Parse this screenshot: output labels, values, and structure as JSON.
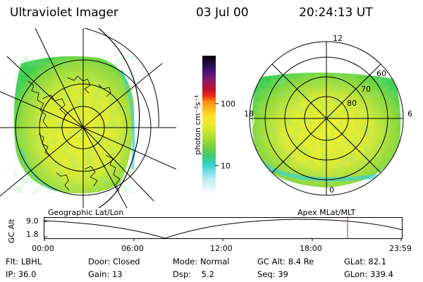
{
  "header": {
    "title": "Ultraviolet Imager",
    "date": "03 Jul 00",
    "time": "20:24:13 UT"
  },
  "left_panel": {
    "label": "Geographic Lat/Lon"
  },
  "right_panel": {
    "label": "Apex MLat/MLT",
    "lat_labels": [
      "60",
      "70",
      "80"
    ],
    "mlt_labels": {
      "top": "12",
      "left": "18",
      "right": "6",
      "bottom": "0"
    }
  },
  "colorbar": {
    "unit_label": "photon cm⁻²s⁻¹",
    "ticks": [
      "100",
      "10"
    ]
  },
  "altitude_plot": {
    "ylabel": "GC Alt",
    "yticks": [
      "9.0",
      "1.8"
    ],
    "xticks": [
      "00:00",
      "06:00",
      "12:00",
      "18:00",
      "23:59"
    ],
    "marker_time": "20:24"
  },
  "footer": {
    "flt": "Flt: LBHL",
    "door": "Door: Closed",
    "mode": "Mode: Normal",
    "gc_alt": "GC Alt: 8.4 Re",
    "glat": "GLat: 82.1",
    "ip": "IP: 36.0",
    "gain": "Gain: 13",
    "dsp": "Dsp:    5.2",
    "seq": "Seq: 39",
    "glon": "GLon: 339.4"
  },
  "colors": {
    "aurora_main": "#c8e63a",
    "aurora_green": "#3fce52",
    "aurora_yellow": "#f0f02a",
    "aurora_cyan": "#3fd0d0",
    "marker": "#d01818"
  }
}
